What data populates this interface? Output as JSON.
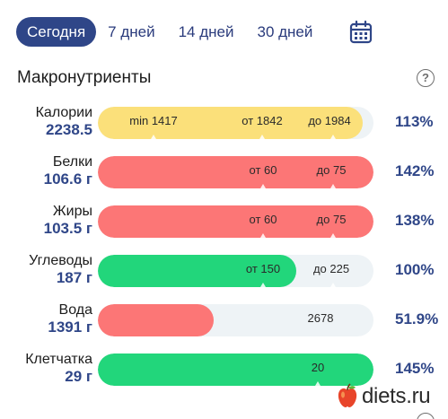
{
  "tabs": [
    {
      "label": "Сегодня",
      "active": true
    },
    {
      "label": "7 дней",
      "active": false
    },
    {
      "label": "14 дней",
      "active": false
    },
    {
      "label": "30 дней",
      "active": false
    }
  ],
  "calendar_icon": "calendar-icon",
  "section": {
    "title": "Макронутриенты",
    "help_icon": "question-circle-icon",
    "help_symbol": "?"
  },
  "colors": {
    "accent": "#2f4688",
    "yellow": "#fbe07a",
    "red": "#fc7676",
    "green": "#22d67b",
    "track": "#eef3f6"
  },
  "rows": [
    {
      "name": "Калории",
      "value": "2238.5",
      "percent": "113%",
      "fill_fraction": 0.96,
      "color": "#fbe07a",
      "marks": [
        {
          "text": "min 1417"
        },
        {
          "text": "от 1842"
        },
        {
          "text": "до 1984"
        }
      ]
    },
    {
      "name": "Белки",
      "value": "106.6 г",
      "percent": "142%",
      "fill_fraction": 1.0,
      "color": "#fc7676",
      "marks": [
        {
          "text": "от 60"
        },
        {
          "text": "до 75"
        }
      ]
    },
    {
      "name": "Жиры",
      "value": "103.5 г",
      "percent": "138%",
      "fill_fraction": 1.0,
      "color": "#fc7676",
      "marks": [
        {
          "text": "от 60"
        },
        {
          "text": "до 75"
        }
      ]
    },
    {
      "name": "Углеводы",
      "value": "187 г",
      "percent": "100%",
      "fill_fraction": 0.72,
      "color": "#22d67b",
      "marks": [
        {
          "text": "от 150"
        },
        {
          "text": "до 225"
        }
      ]
    },
    {
      "name": "Вода",
      "value": "1391 г",
      "percent": "51.9%",
      "fill_fraction": 0.42,
      "color": "#fc7676",
      "marks": [
        {
          "text": "2678"
        }
      ]
    },
    {
      "name": "Клетчатка",
      "value": "29 г",
      "percent": "145%",
      "fill_fraction": 1.0,
      "color": "#22d67b",
      "marks": [
        {
          "text": "20"
        }
      ]
    }
  ],
  "watermark": {
    "text": "diets.ru",
    "icon": "apple-icon"
  }
}
